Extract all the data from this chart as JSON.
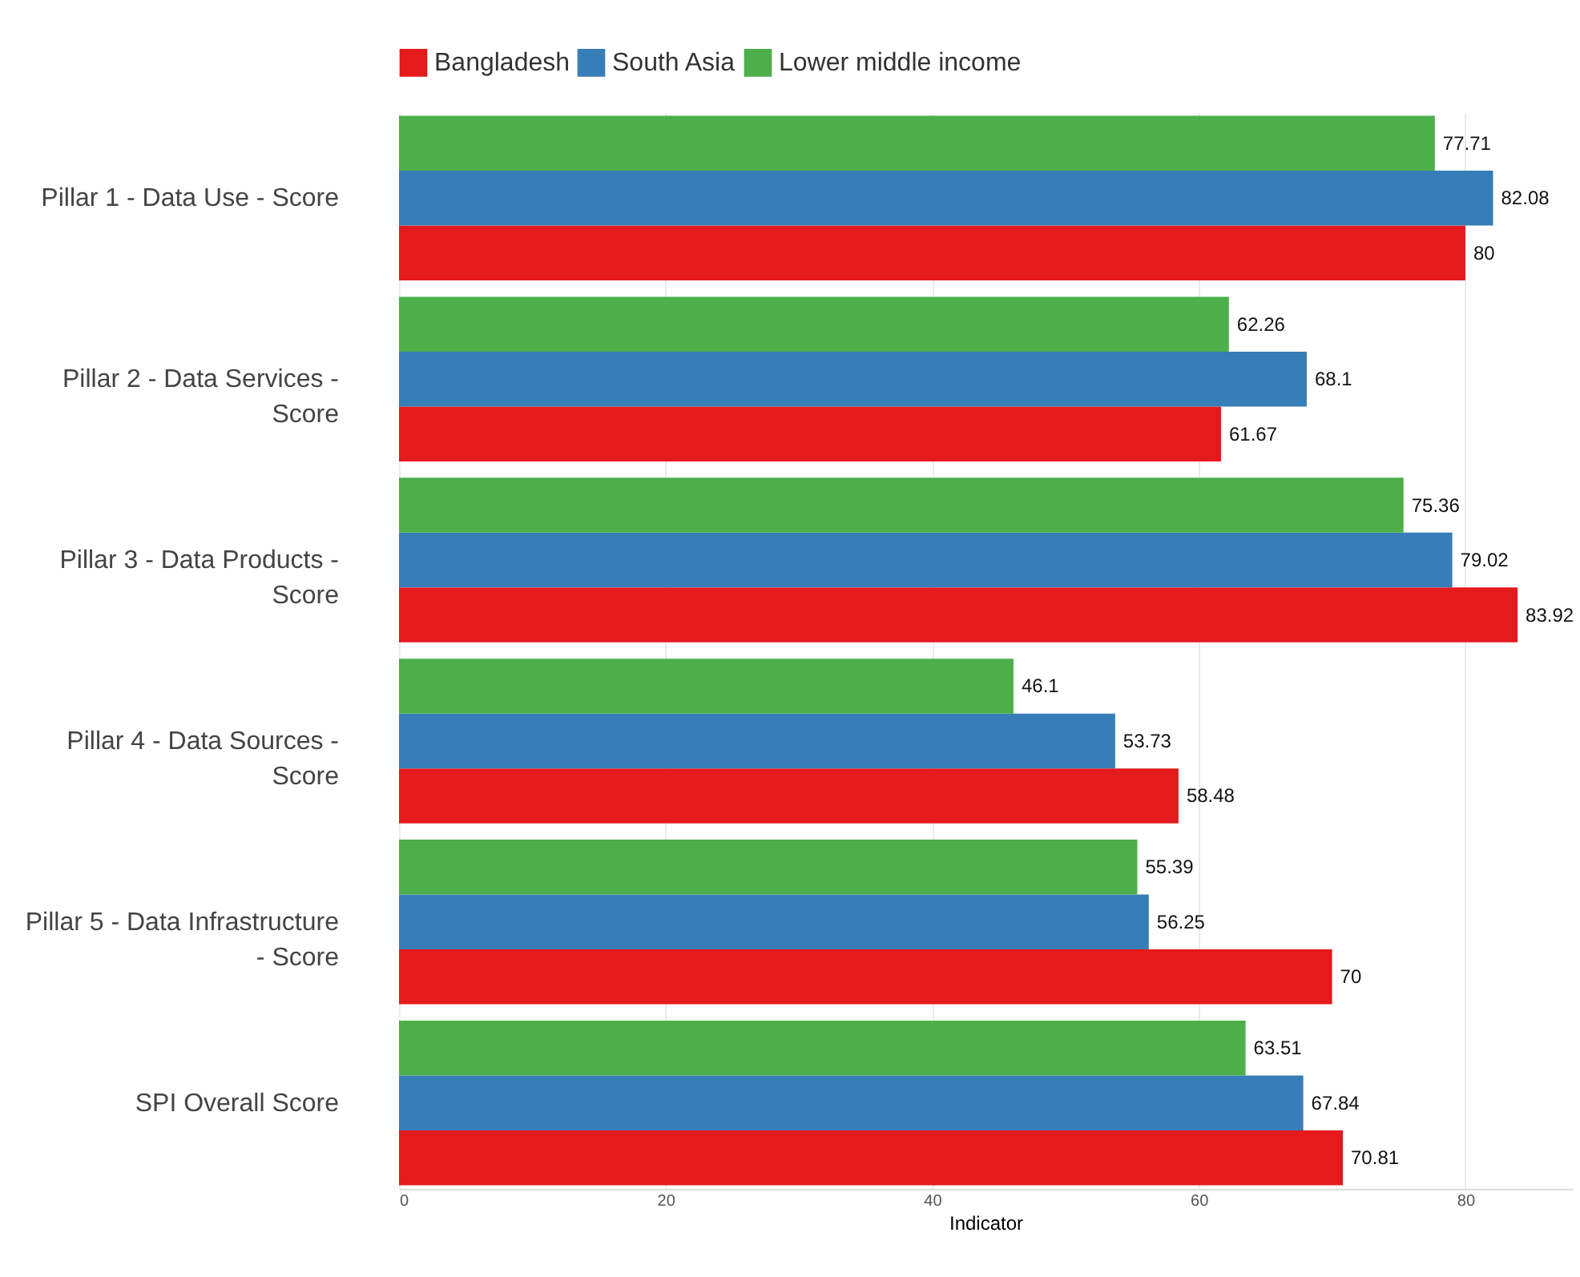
{
  "chart_data": {
    "type": "bar",
    "orientation": "horizontal",
    "xlabel": "Indicator",
    "categories": [
      "Pillar 1 - Data Use - Score",
      "Pillar 2 - Data Services - Score",
      "Pillar 3 - Data Products - Score",
      "Pillar 4 - Data Sources - Score",
      "Pillar 5 - Data Infrastructure - Score",
      "SPI Overall Score"
    ],
    "series": [
      {
        "name": "Bangladesh",
        "color": "#e41a1c",
        "values": [
          80,
          61.67,
          83.92,
          58.48,
          70,
          70.81
        ]
      },
      {
        "name": "South Asia",
        "color": "#377eb8",
        "values": [
          82.08,
          68.1,
          79.02,
          53.73,
          56.25,
          67.84
        ]
      },
      {
        "name": "Lower middle income",
        "color": "#4daf4a",
        "values": [
          77.71,
          62.26,
          75.36,
          46.1,
          55.39,
          63.51
        ]
      }
    ],
    "xlim": [
      0,
      88
    ],
    "xticks": [
      0,
      20,
      40,
      60,
      80
    ],
    "grid": "x",
    "legend": "top",
    "data_labels": true
  }
}
